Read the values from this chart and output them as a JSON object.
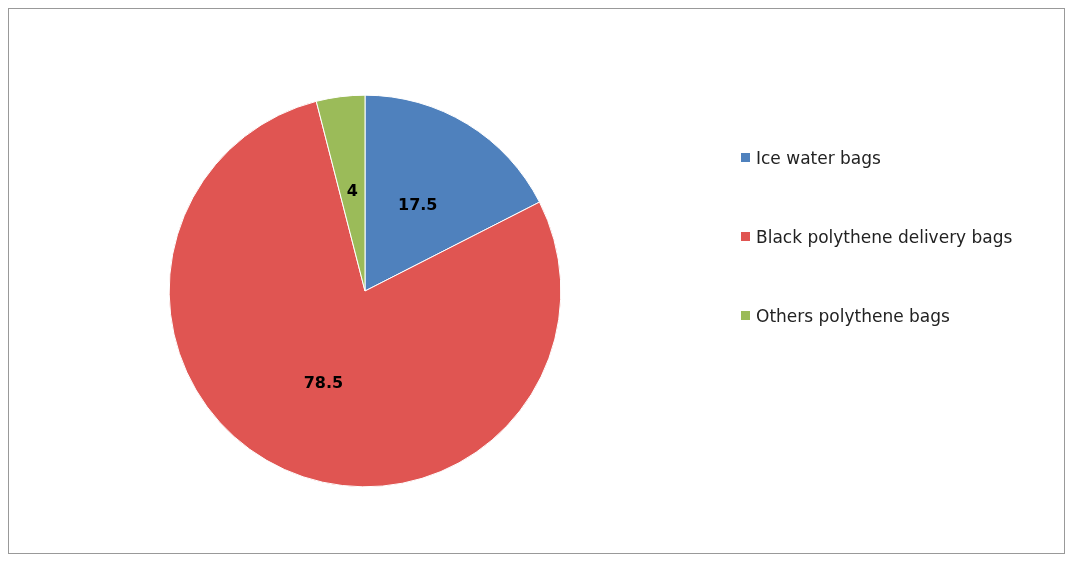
{
  "chart_data": {
    "type": "pie",
    "categories": [
      "Ice water bags",
      "Black polythene delivery bags",
      "Others polythene bags"
    ],
    "values": [
      17.5,
      78.5,
      4
    ],
    "colors": [
      "#4f81bd",
      "#e05552",
      "#9bbb59"
    ],
    "data_labels": true,
    "legend": "right"
  }
}
